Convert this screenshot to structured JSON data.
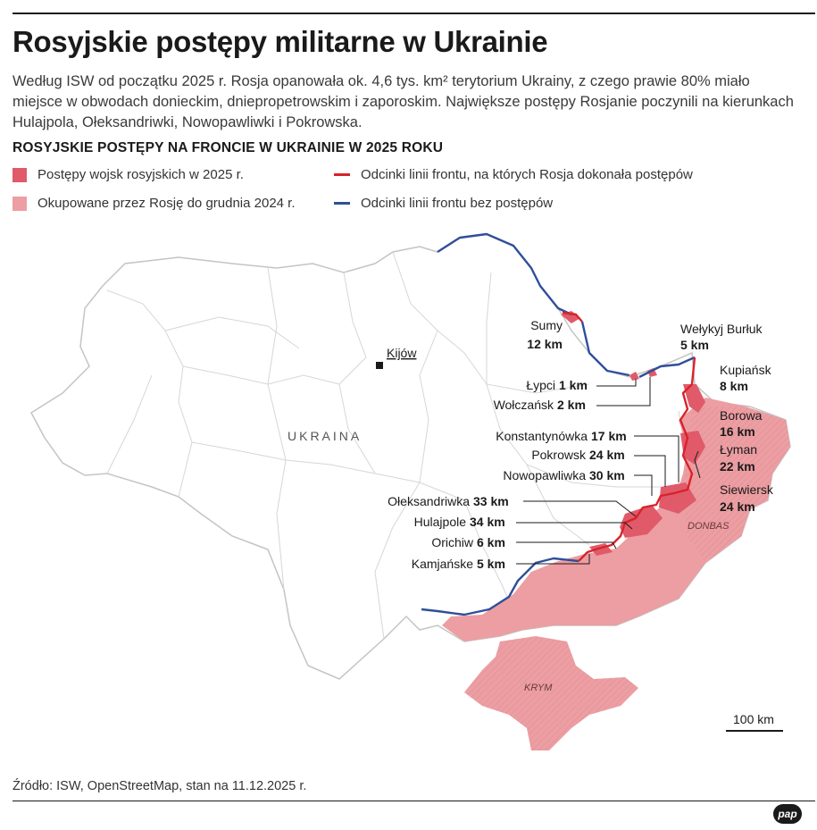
{
  "header": {
    "title": "Rosyjskie postępy militarne w Ukrainie",
    "lead": "Według ISW od początku 2025 r. Rosja opanowała ok. 4,6 tys. km² terytorium Ukrainy, z czego prawie 80% miało miejsce w obwodach donieckim, dniepropetrowskim i zaporoskim. Największe postępy Rosjanie poczynili na kierunkach Hulajpola, Ołeksandriwki, Nowopawliwki i Pokrowska.",
    "subtitle": "ROSYJSKIE POSTĘPY NA FRONCIE W UKRAINIE W 2025 ROKU"
  },
  "legend": {
    "advances_2025": "Postępy wojsk rosyjskich w 2025 r.",
    "occupied_2024": "Okupowane przez Rosję do grudnia 2024 r.",
    "front_with_advances": "Odcinki linii frontu, na których Rosja dokonała postępów",
    "front_no_advances": "Odcinki linii frontu bez postępów"
  },
  "colors": {
    "advances_2025": "#e05a6a",
    "occupied_2024": "#ec9ea2",
    "front_with_advances": "#d8232a",
    "front_no_advances": "#2f4f9a",
    "oblast_border": "#d6d6d6",
    "country_border": "#c4c4c4"
  },
  "map": {
    "country_label": "UKRAINA",
    "capital_label": "Kijów",
    "region_labels": {
      "donbas": "DONBAS",
      "krym": "KRYM"
    },
    "scale_label": "100 km",
    "directions": [
      {
        "name": "Sumy",
        "km": "12 km"
      },
      {
        "name": "Wełykyj Burłuk",
        "km": "5 km"
      },
      {
        "name": "Kupiańsk",
        "km": "8 km"
      },
      {
        "name": "Łypci",
        "km": "1 km"
      },
      {
        "name": "Wołczańsk",
        "km": "2 km"
      },
      {
        "name": "Borowa",
        "km": "16 km"
      },
      {
        "name": "Konstantynówka",
        "km": "17 km"
      },
      {
        "name": "Pokrowsk",
        "km": "24 km"
      },
      {
        "name": "Łyman",
        "km": "22 km"
      },
      {
        "name": "Nowopawliwka",
        "km": "30 km"
      },
      {
        "name": "Siewiersk",
        "km": "24 km"
      },
      {
        "name": "Ołeksandriwka",
        "km": "33 km"
      },
      {
        "name": "Hulajpole",
        "km": "34 km"
      },
      {
        "name": "Orichiw",
        "km": "6 km"
      },
      {
        "name": "Kamjańske",
        "km": "5 km"
      }
    ]
  },
  "footer": {
    "source": "Źródło: ISW, OpenStreetMap, stan na 11.12.2025 r.",
    "logo": "pap"
  }
}
